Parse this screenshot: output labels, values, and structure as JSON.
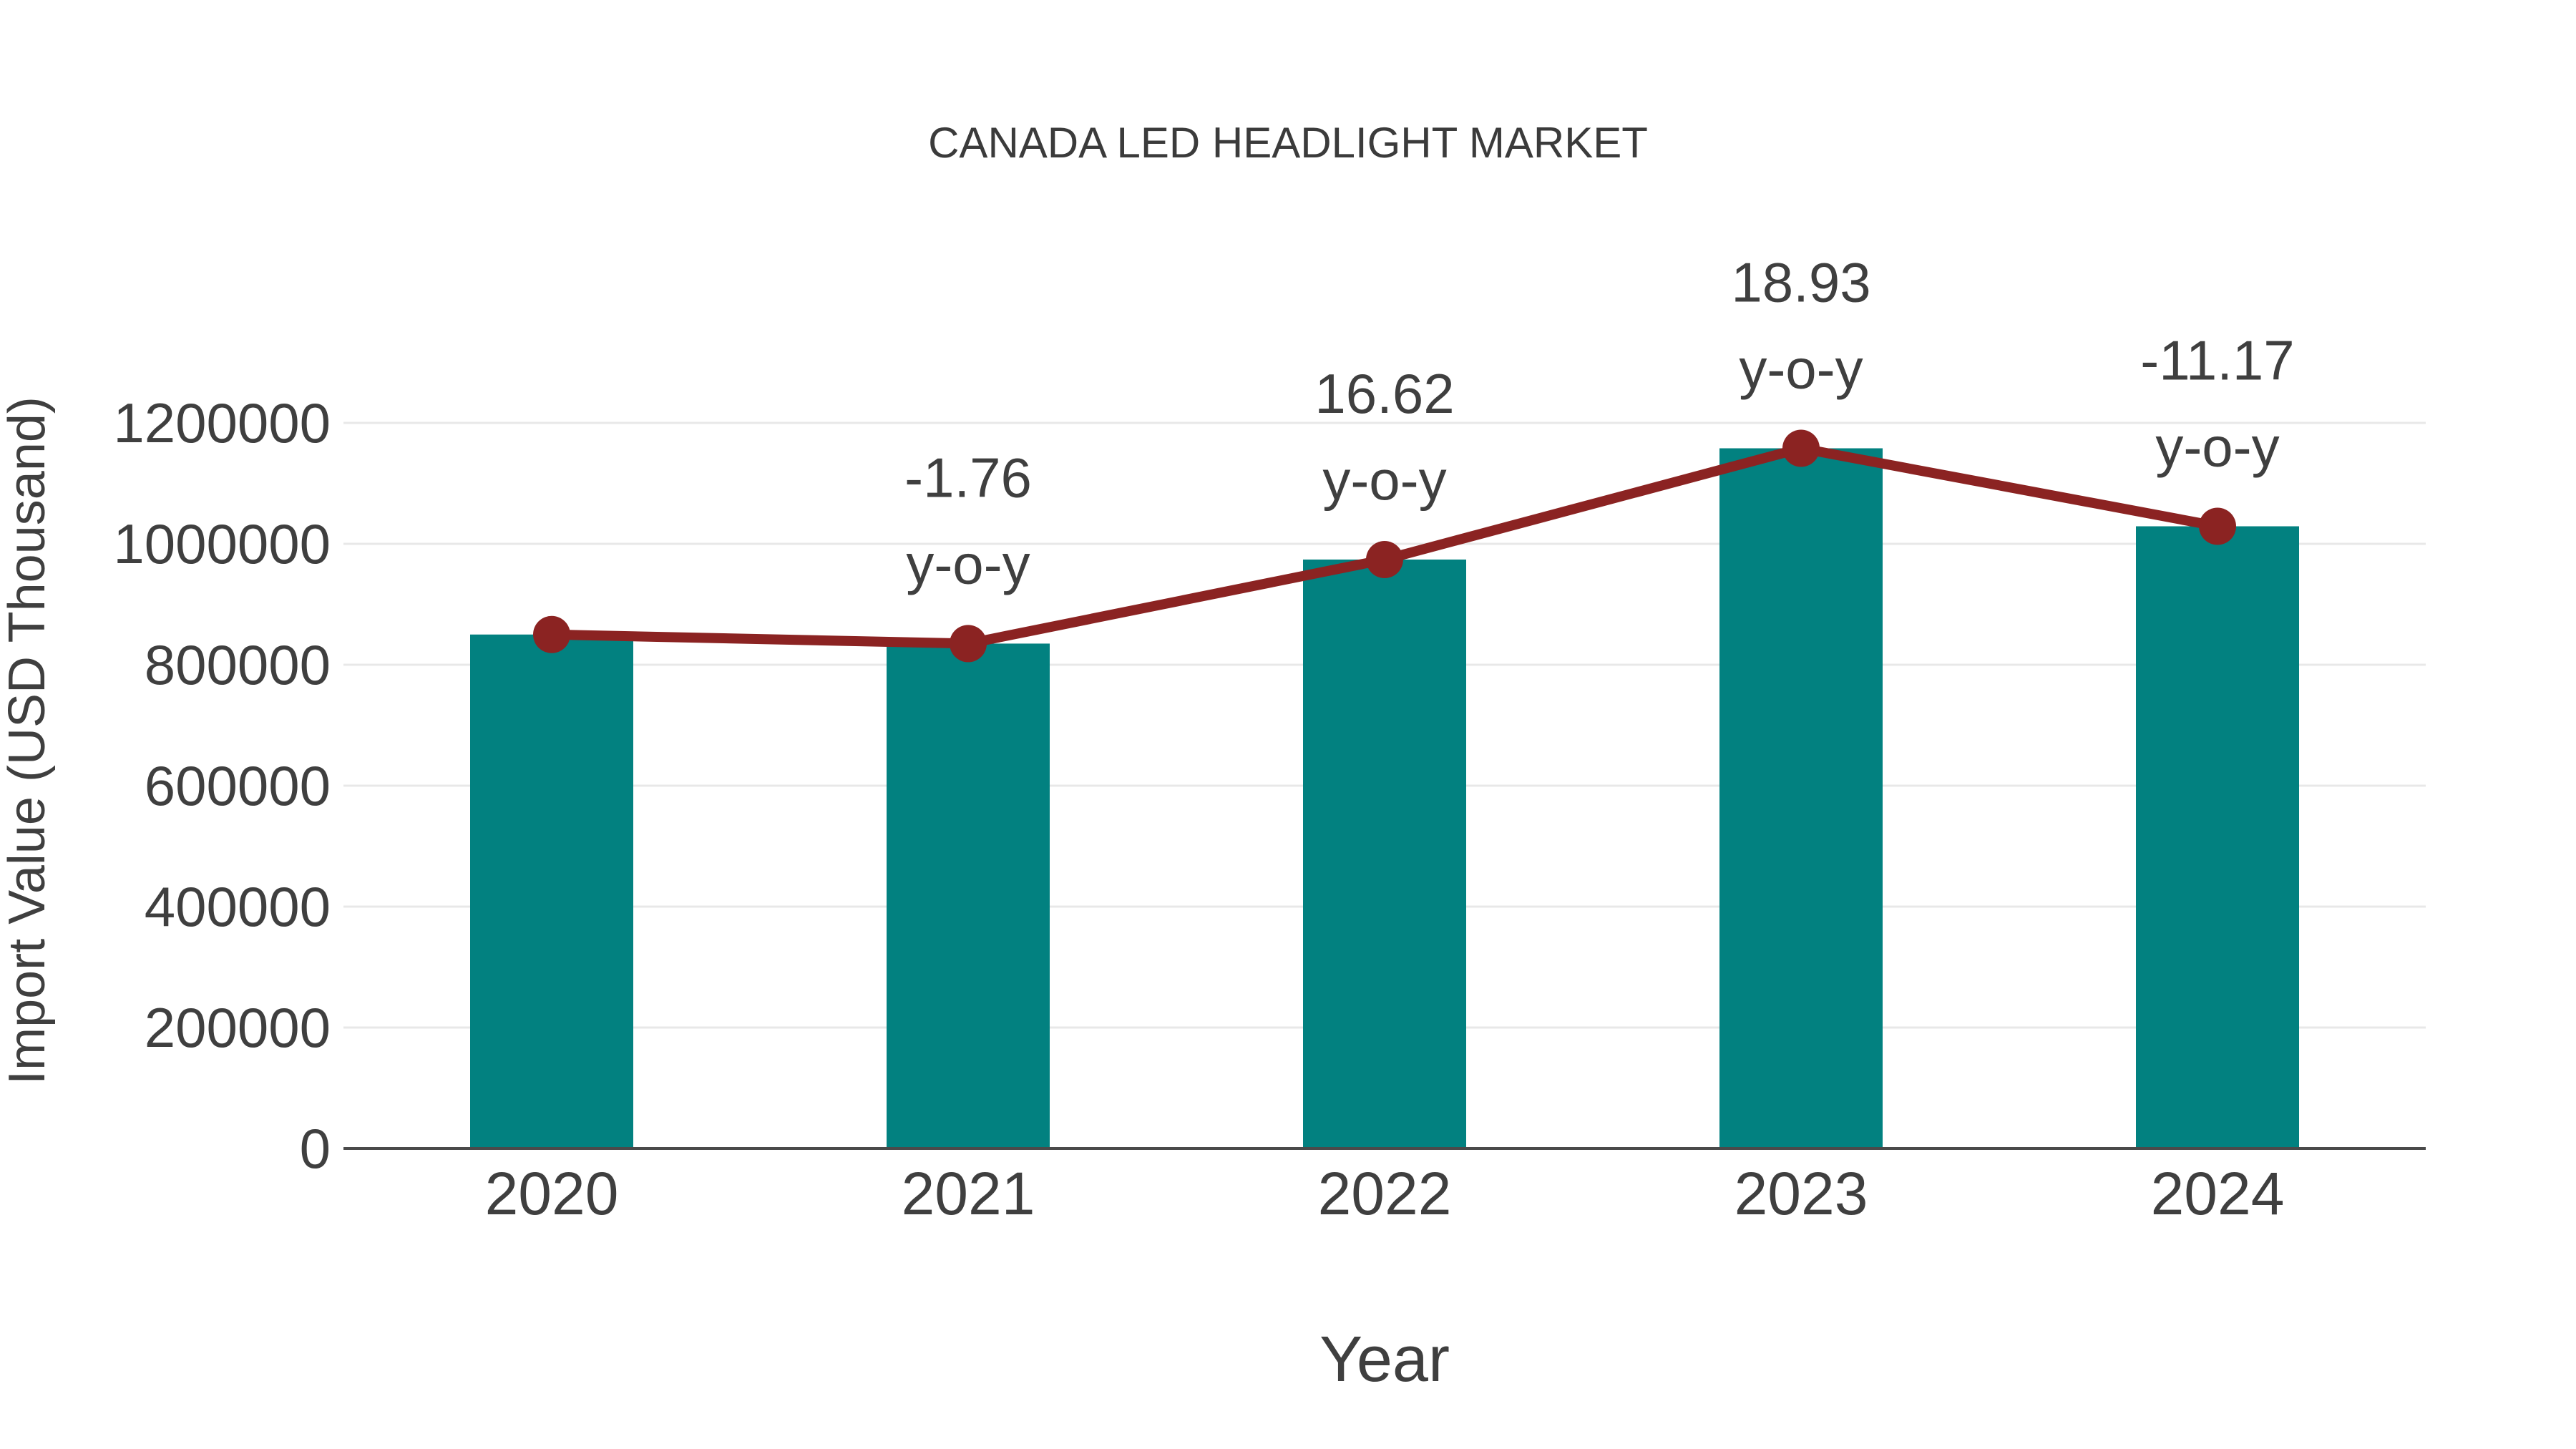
{
  "figure": {
    "background": "#ffffff"
  },
  "chart_data": {
    "type": "bar",
    "title": "CANADA LED HEADLIGHT MARKET",
    "xlabel": "Year",
    "ylabel": "Import Value (USD Thousand)",
    "categories": [
      "2020",
      "2021",
      "2022",
      "2023",
      "2024"
    ],
    "series": [
      {
        "name": "import-value-bars",
        "type": "bar",
        "values": [
          850000,
          835000,
          974000,
          1158000,
          1029000
        ]
      },
      {
        "name": "import-value-line",
        "type": "line",
        "values": [
          850000,
          835000,
          974000,
          1158000,
          1029000
        ]
      }
    ],
    "yoy_labels": [
      "",
      "-1.76",
      "16.62",
      "18.93",
      "-11.17"
    ],
    "yoy_suffix": "y-o-y",
    "ylim": [
      0,
      1200000
    ],
    "yticks": [
      {
        "value": 0,
        "label": "0"
      },
      {
        "value": 200000,
        "label": "200000"
      },
      {
        "value": 400000,
        "label": "400000"
      },
      {
        "value": 600000,
        "label": "600000"
      },
      {
        "value": 800000,
        "label": "800000"
      },
      {
        "value": 1000000,
        "label": "1000000"
      },
      {
        "value": 1200000,
        "label": "1200000"
      }
    ],
    "grid": true,
    "legend_position": "none",
    "colors": {
      "bar": "#028180",
      "line": "#8B2322",
      "marker": "#8B2322",
      "grid": "#e8e8e8",
      "axis": "#4a4a4a",
      "text": "#3f3f3f",
      "title": "#3b3b3b"
    }
  }
}
